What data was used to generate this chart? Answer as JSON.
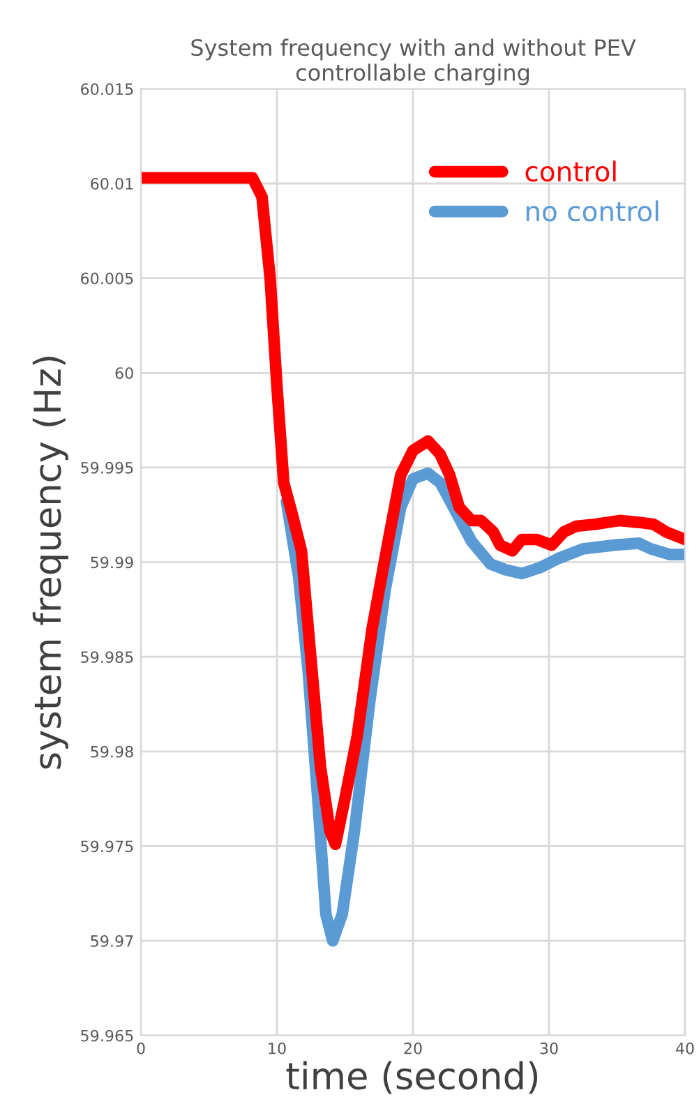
{
  "chart_data": {
    "type": "line",
    "title": "System frequency with and without PEV controllable charging",
    "xlabel": "time (second)",
    "ylabel": "system frequency (Hz)",
    "xlim": [
      0,
      40
    ],
    "xticks": [
      0,
      10,
      20,
      30,
      40
    ],
    "ylim": [
      59.965,
      60.015
    ],
    "yticks": [
      59.965,
      59.97,
      59.975,
      59.98,
      59.985,
      59.99,
      59.995,
      60,
      60.005,
      60.01,
      60.015
    ],
    "grid": true,
    "legend": "top right",
    "line_style": "solid",
    "series": [
      {
        "name": "control",
        "color": "#ff0000",
        "x": [
          0,
          8.2,
          8.9,
          9.5,
          10,
          10.5,
          11.1,
          11.8,
          12.5,
          13.2,
          13.9,
          14.3,
          15,
          15.9,
          17,
          18.2,
          19.1,
          20,
          21.1,
          22,
          22.7,
          23.4,
          24.3,
          25,
          25.9,
          26.4,
          27.3,
          28,
          29.1,
          30.2,
          31.1,
          32,
          33.4,
          35.2,
          36.6,
          37.7,
          38.6,
          40
        ],
        "values": [
          60.0103,
          60.0103,
          60.0093,
          60.005,
          59.9993,
          59.9942,
          59.9926,
          59.9906,
          59.9849,
          59.9792,
          59.9758,
          59.9751,
          59.9775,
          59.9808,
          59.9865,
          59.9912,
          59.9946,
          59.9959,
          59.9964,
          59.9957,
          59.9946,
          59.9929,
          59.9922,
          59.9922,
          59.9916,
          59.9909,
          59.9906,
          59.9912,
          59.9912,
          59.9909,
          59.9916,
          59.9919,
          59.992,
          59.9922,
          59.9921,
          59.992,
          59.9916,
          59.9912
        ]
      },
      {
        "name": "no control",
        "color": "#5b9bd5",
        "x": [
          10.7,
          11.6,
          12.3,
          13,
          13.6,
          14.1,
          14.8,
          15.7,
          16.8,
          17.95,
          19.1,
          20,
          21.1,
          22,
          23.2,
          24.3,
          25.7,
          26.8,
          28,
          29.3,
          30.7,
          32.5,
          34.8,
          36.6,
          37.5,
          38.9,
          40
        ],
        "values": [
          59.9932,
          59.9892,
          59.9842,
          59.9775,
          59.9714,
          59.97,
          59.9714,
          59.9758,
          59.9825,
          59.9885,
          59.9929,
          59.9944,
          59.9947,
          59.9942,
          59.9926,
          59.9911,
          59.9899,
          59.9896,
          59.9894,
          59.9897,
          59.9902,
          59.9907,
          59.9909,
          59.991,
          59.9907,
          59.9904,
          59.9904
        ]
      }
    ]
  }
}
